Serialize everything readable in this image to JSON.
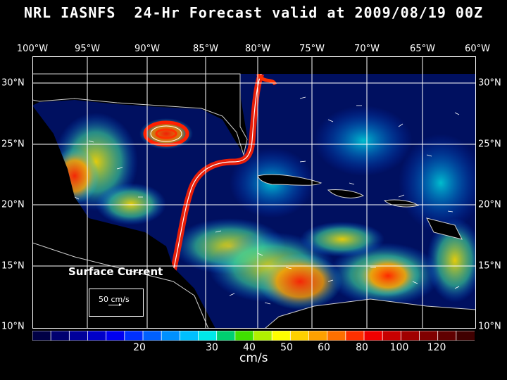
{
  "title": "NRL IASNFS  24-Hr Forecast valid at 2009/08/19 00Z",
  "lon_labels": [
    "100°W",
    "95°W",
    "90°W",
    "85°W",
    "80°W",
    "75°W",
    "70°W",
    "65°W",
    "60°W"
  ],
  "lat_labels": [
    "30°N",
    "25°N",
    "20°N",
    "15°N",
    "10°N"
  ],
  "legend": {
    "title": "Surface Current",
    "scale_label": "50 cm/s"
  },
  "colorbar": {
    "unit": "cm/s",
    "tick_labels": [
      "20",
      "30",
      "40",
      "50",
      "60",
      "80",
      "100",
      "120"
    ],
    "colors": [
      "#000045",
      "#000070",
      "#00009a",
      "#0000c8",
      "#0000f0",
      "#0030ff",
      "#0060ff",
      "#0090ff",
      "#00c0ff",
      "#00e8e8",
      "#00d070",
      "#40e000",
      "#b0f000",
      "#ffff00",
      "#ffd000",
      "#ffa000",
      "#ff7000",
      "#ff3000",
      "#f00000",
      "#c80000",
      "#a00000",
      "#800000",
      "#600000",
      "#400000"
    ]
  },
  "colors": {
    "background": "#000000",
    "land": "#000000",
    "ocean_base": "#001060"
  }
}
